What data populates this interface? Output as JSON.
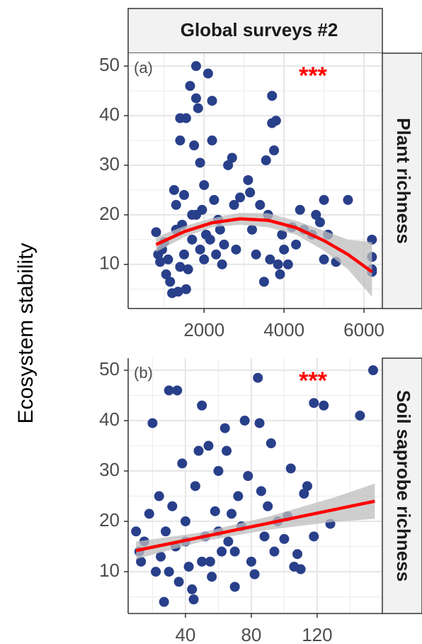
{
  "facet_title": "Global surveys #2",
  "ylabel": "Ecosystem stability",
  "chart_data": [
    {
      "type": "scatter",
      "facet_label": "Plant richness",
      "panel_tag": "(a)",
      "annotation": "***",
      "annotation_color": "#ff0000",
      "color": "#283f8a",
      "x": [
        800,
        850,
        900,
        950,
        1000,
        1050,
        1100,
        1150,
        1200,
        1250,
        1300,
        1350,
        1400,
        1400,
        1450,
        1500,
        1550,
        1600,
        1650,
        1700,
        1750,
        1800,
        1800,
        1850,
        1900,
        1900,
        1950,
        2000,
        2050,
        2100,
        2150,
        2200,
        2200,
        2250,
        2300,
        2350,
        2400,
        2450,
        2500,
        2600,
        2700,
        2750,
        2800,
        2900,
        3100,
        3150,
        3200,
        3300,
        3400,
        3500,
        3550,
        3600,
        3650,
        3700,
        3700,
        3750,
        3800,
        3850,
        3900,
        3950,
        4000,
        4100,
        4200,
        4300,
        4400,
        4500,
        4700,
        4800,
        4900,
        5000,
        5000,
        5100,
        5300,
        5600,
        6200,
        6200,
        6200,
        6200,
        1550,
        1500,
        1700,
        1400,
        2000,
        1800,
        1300
      ],
      "y": [
        16.5,
        12,
        10.5,
        13,
        14.5,
        8,
        11,
        6.5,
        4.2,
        25,
        22,
        4.5,
        35,
        39.5,
        18,
        12,
        39.5,
        9,
        46,
        20,
        34,
        50,
        43.5,
        41.5,
        30.5,
        13,
        21,
        26,
        16,
        48.5,
        15,
        43,
        35,
        23,
        12,
        19,
        17,
        10,
        14,
        30,
        31.5,
        22,
        13,
        23.5,
        27,
        24.5,
        17,
        12,
        22,
        6.5,
        31,
        20,
        11,
        44,
        38.5,
        33,
        39,
        10,
        8,
        16,
        13,
        10,
        17.5,
        14,
        21,
        17,
        16,
        20,
        18.5,
        23,
        11,
        16,
        10.5,
        23,
        15,
        11.5,
        9,
        8.5,
        5,
        24,
        15,
        9.5,
        11,
        20,
        17
      ],
      "fit": {
        "color": "#ff0000",
        "band_color": "#bdbdbd",
        "x": [
          800,
          1500,
          2200,
          2900,
          3600,
          4300,
          5000,
          5600,
          6200
        ],
        "y": [
          14,
          16.6,
          18.4,
          19.2,
          18.9,
          17.4,
          14.8,
          12,
          8.5
        ],
        "lower": [
          12.5,
          15.5,
          17.5,
          18,
          17.5,
          16,
          12.8,
          9,
          3.5
        ],
        "upper": [
          15.5,
          17.7,
          19.3,
          20.4,
          20.3,
          18.8,
          16.8,
          15,
          14.5
        ]
      },
      "xlim": [
        100,
        6460
      ],
      "ylim": [
        1.1,
        52.6
      ],
      "xticks": [
        2000,
        4000,
        6000
      ],
      "yticks": [
        10,
        20,
        30,
        40,
        50
      ],
      "grid": true
    },
    {
      "type": "scatter",
      "facet_label": "Soil saprobe richness",
      "panel_tag": "(b)",
      "annotation": "***",
      "annotation_color": "#ff0000",
      "color": "#283f8a",
      "x": [
        10,
        12,
        13,
        15,
        18,
        20,
        22,
        24,
        25,
        27,
        28,
        30,
        32,
        34,
        35,
        36,
        38,
        40,
        42,
        44,
        45,
        46,
        48,
        50,
        52,
        54,
        55,
        56,
        58,
        60,
        62,
        64,
        65,
        66,
        68,
        70,
        72,
        74,
        76,
        78,
        80,
        82,
        84,
        85,
        86,
        88,
        90,
        92,
        94,
        96,
        100,
        104,
        106,
        108,
        110,
        112,
        114,
        118,
        118,
        124,
        128,
        146,
        154,
        102,
        60,
        50,
        40,
        70,
        30
      ],
      "y": [
        18,
        14,
        12,
        16,
        21.5,
        39.5,
        10,
        25,
        13,
        4,
        18,
        46,
        23,
        15,
        46,
        8,
        31.5,
        20,
        11,
        6.5,
        4.5,
        27,
        34,
        43,
        17,
        35,
        12,
        9,
        22,
        30,
        14,
        38.5,
        34,
        16,
        21.5,
        7,
        25,
        19,
        40,
        29,
        12,
        9.5,
        48.5,
        39.5,
        26,
        17,
        23,
        35.5,
        14,
        20,
        16.5,
        30.5,
        11,
        13.5,
        10.5,
        25.5,
        27,
        43.5,
        17,
        43,
        19.5,
        41,
        50,
        21,
        18,
        12,
        16,
        14,
        10
      ],
      "fit": {
        "color": "#ff0000",
        "band_color": "#bdbdbd",
        "x": [
          10,
          50,
          90,
          130,
          155
        ],
        "y": [
          14.2,
          16.9,
          19.6,
          22.3,
          24
        ],
        "lower": [
          12.5,
          16,
          18.3,
          19.9,
          20.5
        ],
        "upper": [
          16,
          17.8,
          20.9,
          24.7,
          27.5
        ]
      },
      "xlim": [
        5.2,
        159.6
      ],
      "ylim": [
        1.7,
        52.4
      ],
      "xticks": [
        40,
        80,
        120
      ],
      "yticks": [
        10,
        20,
        30,
        40,
        50
      ],
      "grid": true
    }
  ]
}
